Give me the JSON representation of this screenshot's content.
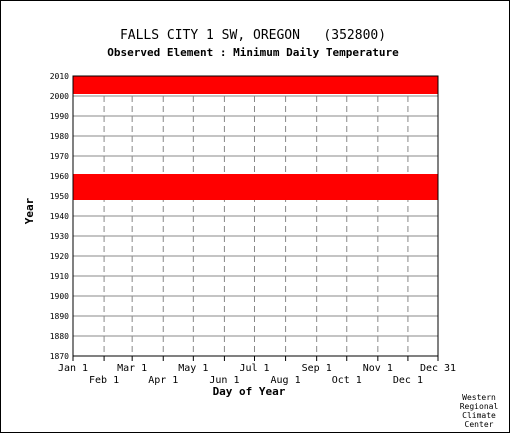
{
  "chart_data": {
    "type": "coverage",
    "title": "FALLS CITY 1 SW, OREGON   (352800)",
    "subtitle": "Observed Element : Minimum Daily Temperature",
    "xlabel": "Day of Year",
    "ylabel": "Year",
    "x_range_day_of_year": [
      1,
      365
    ],
    "ylim": [
      1870,
      2010
    ],
    "y_ticks": [
      1870,
      1880,
      1890,
      1900,
      1910,
      1920,
      1930,
      1940,
      1950,
      1960,
      1970,
      1980,
      1990,
      2000,
      2010
    ],
    "x_ticks_upper": [
      {
        "label": "Jan 1",
        "day": 1
      },
      {
        "label": "Mar 1",
        "day": 60
      },
      {
        "label": "May 1",
        "day": 121
      },
      {
        "label": "Jul 1",
        "day": 182
      },
      {
        "label": "Sep 1",
        "day": 244
      },
      {
        "label": "Nov 1",
        "day": 305
      },
      {
        "label": "Dec 31",
        "day": 365
      }
    ],
    "x_ticks_lower": [
      {
        "label": "Feb 1",
        "day": 32
      },
      {
        "label": "Apr 1",
        "day": 91
      },
      {
        "label": "Jun 1",
        "day": 152
      },
      {
        "label": "Aug 1",
        "day": 213
      },
      {
        "label": "Oct 1",
        "day": 274
      },
      {
        "label": "Dec 1",
        "day": 335
      }
    ],
    "grid": true,
    "series_color": "#ff0000",
    "coverage_bands": [
      {
        "start_year": 1948,
        "end_year": 1961,
        "start_day": 1,
        "end_day": 365
      },
      {
        "start_year": 2001,
        "end_year": 2010,
        "start_day": 1,
        "end_day": 365
      }
    ]
  },
  "credit": [
    "Western",
    "Regional",
    "Climate",
    "Center"
  ]
}
